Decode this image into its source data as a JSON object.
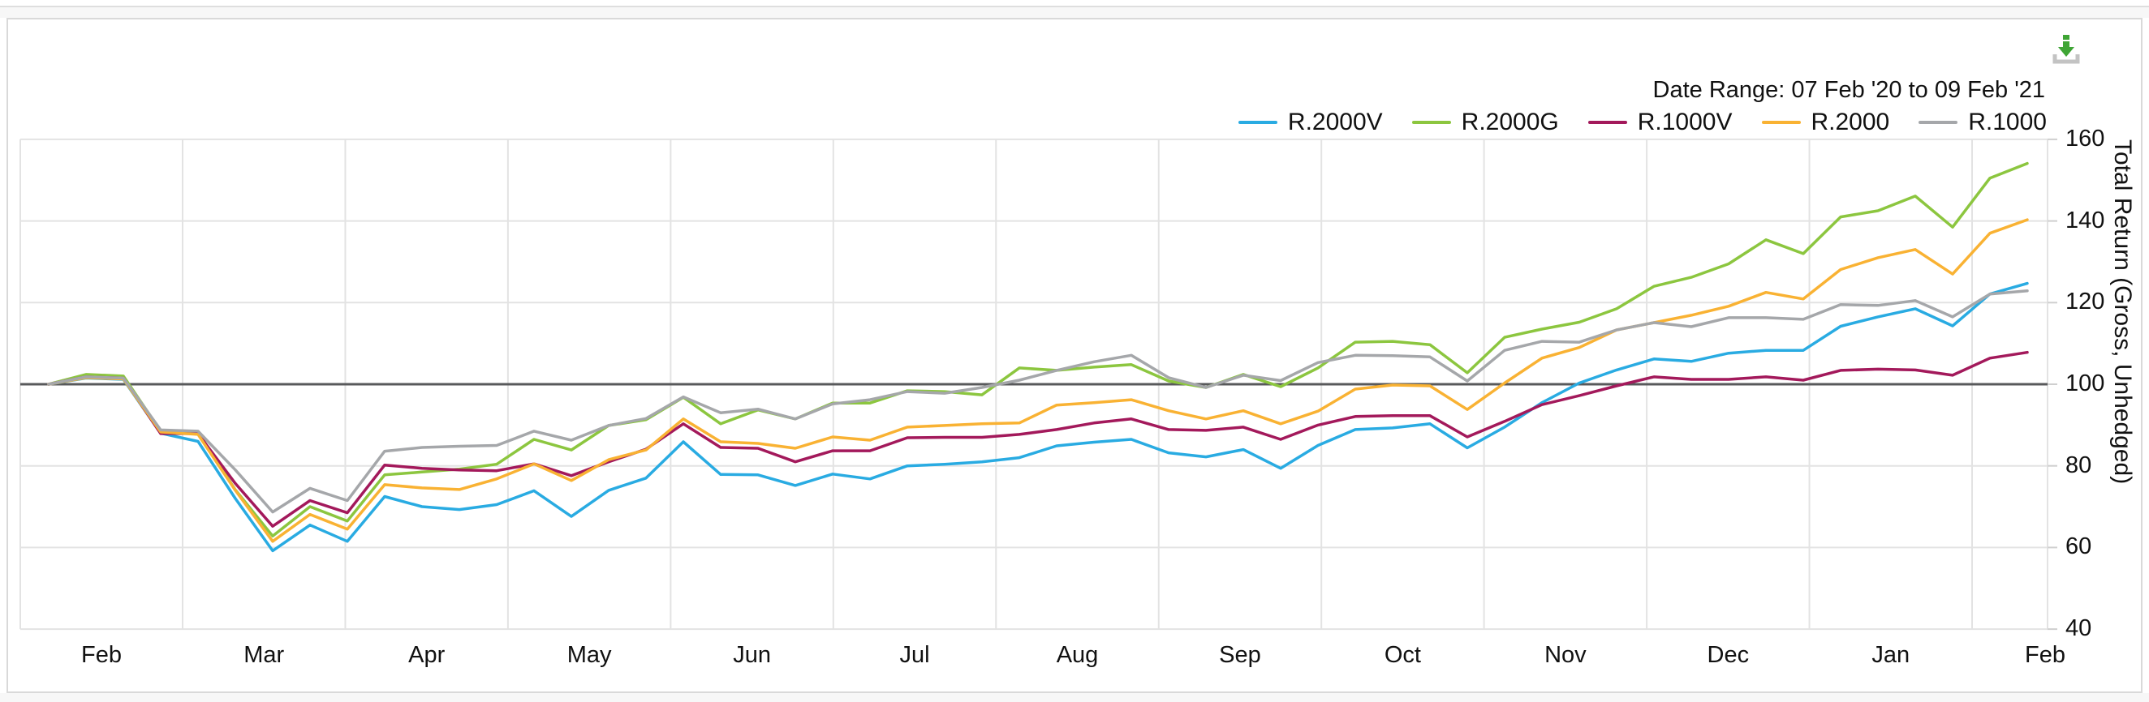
{
  "header": {
    "date_range_label": "Date Range: 07 Feb '20 to 09 Feb '21"
  },
  "toolbar": {
    "download_icon_color": "#3FA535",
    "download_tray_color": "#C3C3C3"
  },
  "axes": {
    "y_title": "Total Return (Gross, Unhedged)",
    "y_ticks": [
      160,
      140,
      120,
      100,
      80,
      60,
      40
    ],
    "baseline_value": 100,
    "x_labels": [
      "Feb",
      "Mar",
      "Apr",
      "May",
      "Jun",
      "Jul",
      "Aug",
      "Sep",
      "Oct",
      "Nov",
      "Dec",
      "Jan",
      "Feb"
    ]
  },
  "style": {
    "grid_color": "#e3e3e3",
    "baseline_color": "#58595b",
    "text_color": "#111111"
  },
  "chart_data": {
    "type": "line",
    "title": "",
    "xlabel": "",
    "ylabel": "Total Return (Gross, Unhedged)",
    "date_range": "07 Feb '20 to 09 Feb '21",
    "frequency": "weekly",
    "points_per_series": 54,
    "baseline": 100,
    "ylim": [
      40,
      160
    ],
    "y_ticks": [
      160,
      140,
      120,
      100,
      80,
      60,
      40
    ],
    "x_labels": [
      "Feb",
      "Mar",
      "Apr",
      "May",
      "Jun",
      "Jul",
      "Aug",
      "Sep",
      "Oct",
      "Nov",
      "Dec",
      "Jan",
      "Feb"
    ],
    "grid": true,
    "legend_position": "top-right",
    "series": [
      {
        "name": "R.2000V",
        "color": "#29ABE2",
        "values": [
          100,
          101.5,
          101.2,
          88.0,
          86.0,
          72.0,
          59.2,
          65.5,
          61.5,
          72.5,
          70.0,
          69.3,
          70.5,
          73.9,
          67.6,
          74.0,
          77.0,
          85.9,
          77.9,
          77.8,
          75.2,
          78.0,
          76.8,
          80.0,
          80.4,
          81.0,
          82.0,
          84.9,
          85.8,
          86.5,
          83.2,
          82.2,
          84.0,
          79.4,
          85.0,
          88.9,
          89.3,
          90.3,
          84.4,
          89.5,
          95.5,
          100.3,
          103.5,
          106.2,
          105.6,
          107.6,
          108.3,
          108.3,
          114.2,
          116.5,
          118.5,
          114.3,
          122.1,
          124.7
        ]
      },
      {
        "name": "R.2000G",
        "color": "#8CC63F",
        "values": [
          100,
          102.4,
          102.0,
          88.5,
          88.3,
          74.1,
          62.8,
          70.0,
          66.5,
          77.8,
          78.5,
          79.2,
          80.4,
          86.5,
          83.9,
          89.9,
          91.3,
          96.8,
          90.3,
          93.7,
          91.5,
          95.4,
          95.4,
          98.4,
          98.2,
          97.4,
          104.0,
          103.4,
          104.2,
          104.8,
          100.8,
          99.2,
          102.4,
          99.4,
          104.0,
          110.3,
          110.5,
          109.7,
          102.8,
          111.5,
          113.5,
          115.2,
          118.5,
          124.0,
          126.2,
          129.5,
          135.4,
          132.0,
          141.0,
          142.5,
          146.1,
          138.5,
          150.5,
          154.1
        ]
      },
      {
        "name": "R.1000V",
        "color": "#A3195B",
        "values": [
          100,
          101.8,
          101.5,
          87.9,
          87.9,
          75.7,
          65.2,
          71.5,
          68.5,
          80.2,
          79.4,
          79.0,
          78.8,
          80.5,
          77.6,
          81.0,
          84.1,
          90.3,
          84.5,
          84.3,
          81.0,
          83.7,
          83.7,
          86.9,
          87.0,
          87.0,
          87.7,
          88.9,
          90.5,
          91.5,
          88.9,
          88.7,
          89.5,
          86.5,
          90.0,
          92.1,
          92.3,
          92.3,
          87.1,
          90.9,
          95.0,
          97.2,
          99.6,
          101.8,
          101.2,
          101.2,
          101.8,
          101.0,
          103.4,
          103.7,
          103.5,
          102.2,
          106.4,
          107.8
        ]
      },
      {
        "name": "R.2000",
        "color": "#F9B233",
        "values": [
          100,
          101.6,
          101.3,
          88.3,
          87.7,
          74.0,
          61.5,
          68.1,
          64.5,
          75.4,
          74.6,
          74.2,
          76.8,
          80.5,
          76.4,
          81.5,
          83.9,
          91.5,
          85.9,
          85.5,
          84.3,
          87.1,
          86.3,
          89.5,
          89.9,
          90.3,
          90.5,
          94.9,
          95.5,
          96.2,
          93.5,
          91.5,
          93.5,
          90.3,
          93.4,
          98.8,
          99.8,
          99.6,
          93.8,
          100.3,
          106.4,
          109.0,
          113.3,
          115.1,
          116.9,
          119.1,
          122.5,
          120.9,
          128.1,
          131.0,
          133.0,
          127.0,
          137.0,
          140.3
        ]
      },
      {
        "name": "R.1000",
        "color": "#A5A7AA",
        "values": [
          100,
          101.8,
          101.5,
          88.8,
          88.5,
          79.0,
          68.7,
          74.5,
          71.5,
          83.6,
          84.5,
          84.8,
          85.0,
          88.5,
          86.3,
          89.9,
          91.6,
          96.9,
          93.0,
          93.9,
          91.5,
          95.2,
          96.2,
          98.2,
          97.8,
          99.2,
          101.0,
          103.4,
          105.5,
          107.1,
          101.6,
          99.2,
          102.2,
          100.9,
          105.3,
          107.1,
          107.0,
          106.7,
          100.8,
          108.3,
          110.5,
          110.3,
          113.3,
          115.1,
          114.1,
          116.3,
          116.3,
          115.9,
          119.5,
          119.3,
          120.5,
          116.5,
          122.1,
          122.9
        ]
      }
    ]
  }
}
